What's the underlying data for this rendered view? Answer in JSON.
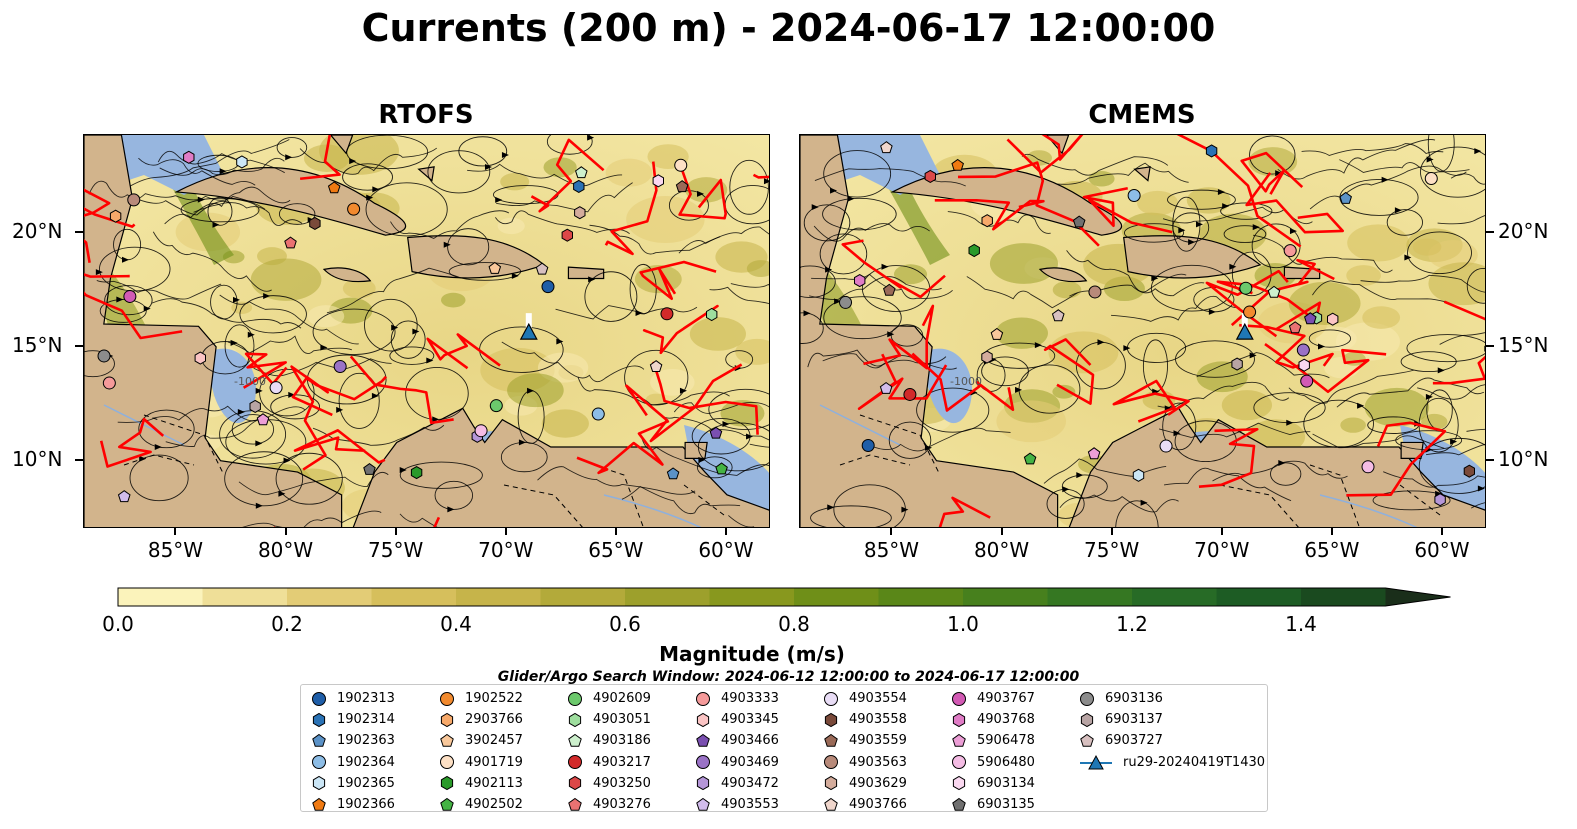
{
  "title": "Currents (200 m) - 2024-06-17 12:00:00",
  "panels": [
    {
      "title": "RTOFS"
    },
    {
      "title": "CMEMS"
    }
  ],
  "lon_ticks": [
    "85°W",
    "80°W",
    "75°W",
    "70°W",
    "65°W",
    "60°W"
  ],
  "lat_ticks": [
    "20°N",
    "15°N",
    "10°N"
  ],
  "contour_label": "-1000",
  "colorbar": {
    "label": "Magnitude (m/s)",
    "ticks": [
      "0.0",
      "0.2",
      "0.4",
      "0.6",
      "0.8",
      "1.0",
      "1.2",
      "1.4"
    ],
    "colors": [
      "#fbf3bb",
      "#efdf98",
      "#e3cc76",
      "#d6bf5c",
      "#c6b44a",
      "#b3aa3a",
      "#9da02c",
      "#88981e",
      "#6f8f18",
      "#5a8718",
      "#47801d",
      "#357722",
      "#276b26",
      "#1d5c24",
      "#1a4a1f",
      "#1a3a1c",
      "#1a2e1a"
    ]
  },
  "map_colors": {
    "land": "#d2b48c",
    "shallow": "#97b6df",
    "ocean_low": "#f3e6a3",
    "ocean_high": "#6f8f18",
    "eddy_boundary": "#ff0000",
    "streamline": "#000000"
  },
  "legend": {
    "title": "Glider/Argo Search Window: 2024-06-12 12:00:00 to 2024-06-17 12:00:00",
    "items": [
      {
        "label": "1902313",
        "color": "#1f5ea8",
        "shape": "circle"
      },
      {
        "label": "1902314",
        "color": "#2a72b5",
        "shape": "hexagon"
      },
      {
        "label": "1902363",
        "color": "#5b92c7",
        "shape": "pentagon"
      },
      {
        "label": "1902364",
        "color": "#8dbde6",
        "shape": "circle"
      },
      {
        "label": "1902365",
        "color": "#cbe6f6",
        "shape": "hexagon"
      },
      {
        "label": "1902366",
        "color": "#f07a12",
        "shape": "pentagon"
      },
      {
        "label": "1902522",
        "color": "#f28a2e",
        "shape": "circle"
      },
      {
        "label": "2903766",
        "color": "#f7a96a",
        "shape": "hexagon"
      },
      {
        "label": "3902457",
        "color": "#f9c89b",
        "shape": "pentagon"
      },
      {
        "label": "4901719",
        "color": "#fde0c5",
        "shape": "circle"
      },
      {
        "label": "4902113",
        "color": "#2a9a2a",
        "shape": "hexagon"
      },
      {
        "label": "4902502",
        "color": "#44b344",
        "shape": "pentagon"
      },
      {
        "label": "4902609",
        "color": "#6cc96c",
        "shape": "circle"
      },
      {
        "label": "4903051",
        "color": "#9ede9e",
        "shape": "hexagon"
      },
      {
        "label": "4903186",
        "color": "#cdf0cd",
        "shape": "pentagon"
      },
      {
        "label": "4903217",
        "color": "#d22a2a",
        "shape": "circle"
      },
      {
        "label": "4903250",
        "color": "#dc4848",
        "shape": "hexagon"
      },
      {
        "label": "4903276",
        "color": "#ea7272",
        "shape": "pentagon"
      },
      {
        "label": "4903333",
        "color": "#f59a9a",
        "shape": "circle"
      },
      {
        "label": "4903345",
        "color": "#fbc4c4",
        "shape": "hexagon"
      },
      {
        "label": "4903466",
        "color": "#7a4fb0",
        "shape": "pentagon"
      },
      {
        "label": "4903469",
        "color": "#9a72c6",
        "shape": "circle"
      },
      {
        "label": "4903472",
        "color": "#b596d8",
        "shape": "hexagon"
      },
      {
        "label": "4903553",
        "color": "#d2bcec",
        "shape": "pentagon"
      },
      {
        "label": "4903554",
        "color": "#e9ddf6",
        "shape": "circle"
      },
      {
        "label": "4903558",
        "color": "#7a4a3a",
        "shape": "hexagon"
      },
      {
        "label": "4903559",
        "color": "#9a6a58",
        "shape": "pentagon"
      },
      {
        "label": "4903563",
        "color": "#b88a7a",
        "shape": "circle"
      },
      {
        "label": "4903629",
        "color": "#d4ac9c",
        "shape": "hexagon"
      },
      {
        "label": "4903766",
        "color": "#f0d6cc",
        "shape": "pentagon"
      },
      {
        "label": "4903767",
        "color": "#d25ab4",
        "shape": "circle"
      },
      {
        "label": "4903768",
        "color": "#e07cc6",
        "shape": "hexagon"
      },
      {
        "label": "5906478",
        "color": "#ec9ed6",
        "shape": "pentagon"
      },
      {
        "label": "5906480",
        "color": "#f4bce4",
        "shape": "circle"
      },
      {
        "label": "6903134",
        "color": "#fad8f0",
        "shape": "hexagon"
      },
      {
        "label": "6903135",
        "color": "#707070",
        "shape": "pentagon"
      },
      {
        "label": "6903136",
        "color": "#8c8c8c",
        "shape": "circle"
      },
      {
        "label": "6903137",
        "color": "#b8a4a4",
        "shape": "hexagon"
      },
      {
        "label": "6903727",
        "color": "#d8c0c0",
        "shape": "pentagon"
      },
      {
        "label": "ru29-20240419T1430",
        "color": "#1f77b4",
        "shape": "triangle-line"
      }
    ]
  }
}
